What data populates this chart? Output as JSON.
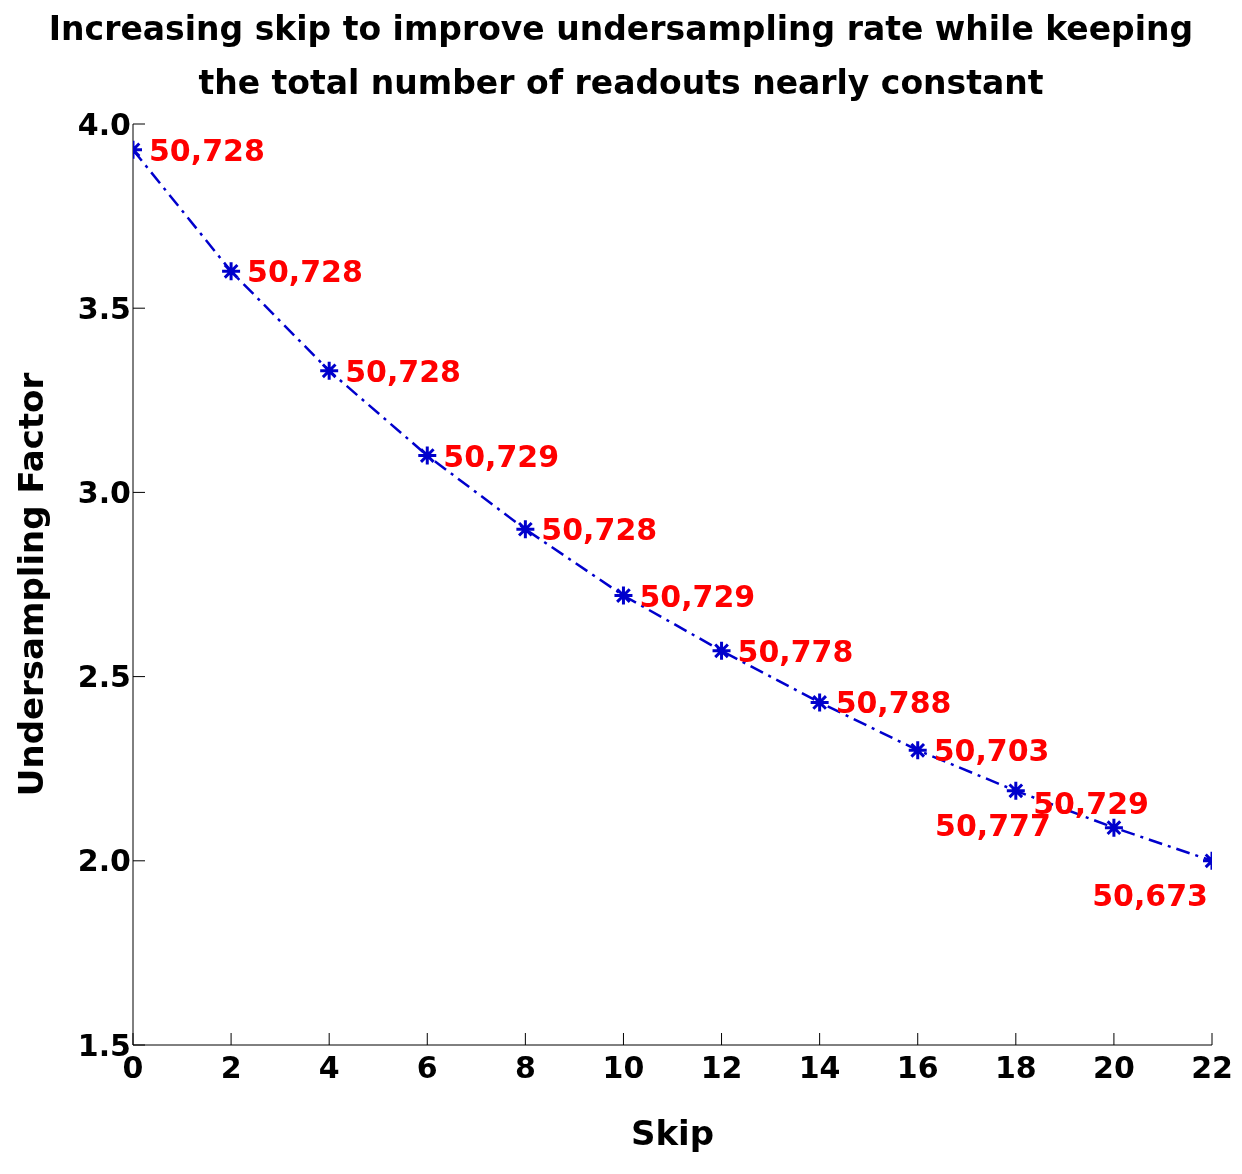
{
  "chart_data": {
    "type": "line",
    "title": "Increasing skip to improve undersampling rate while keeping the total number of readouts nearly constant",
    "xlabel": "Skip",
    "ylabel": "Undersampling Factor",
    "x": [
      0,
      2,
      4,
      6,
      8,
      10,
      12,
      14,
      16,
      18,
      20,
      22
    ],
    "series": [
      {
        "color": "#0000cc",
        "values": [
          3.93,
          3.6,
          3.33,
          3.1,
          2.9,
          2.72,
          2.57,
          2.43,
          2.3,
          2.19,
          2.09,
          2.0
        ]
      }
    ],
    "annotations": [
      {
        "text": "50,728",
        "x": 0,
        "y": 3.93
      },
      {
        "text": "50,728",
        "x": 2,
        "y": 3.6
      },
      {
        "text": "50,728",
        "x": 4,
        "y": 3.33
      },
      {
        "text": "50,729",
        "x": 6,
        "y": 3.1
      },
      {
        "text": "50,728",
        "x": 8,
        "y": 2.9
      },
      {
        "text": "50,729",
        "x": 10,
        "y": 2.72
      },
      {
        "text": "50,778",
        "x": 12,
        "y": 2.57
      },
      {
        "text": "50,788",
        "x": 14,
        "y": 2.43
      },
      {
        "text": "50,703",
        "x": 16,
        "y": 2.3
      },
      {
        "text": "50,777",
        "x": 18,
        "y": 2.19
      },
      {
        "text": "50,729",
        "x": 20,
        "y": 2.09
      },
      {
        "text": "50,673",
        "x": 22,
        "y": 2.0
      }
    ],
    "xlim": [
      0,
      22
    ],
    "xticks": [
      0,
      2,
      4,
      6,
      8,
      10,
      12,
      14,
      16,
      18,
      20,
      22
    ],
    "ylim": [
      1.5,
      4.0
    ],
    "yticks": [
      {
        "value": 1.5,
        "label": "1.5"
      },
      {
        "value": 2,
        "label": "2.0"
      },
      {
        "value": 2.5,
        "label": "2.5"
      },
      {
        "value": 3,
        "label": "3.0"
      },
      {
        "value": 3.5,
        "label": "3.5"
      },
      {
        "value": 4,
        "label": "4.0"
      }
    ],
    "marker": "cross",
    "line_style": "dashed"
  }
}
